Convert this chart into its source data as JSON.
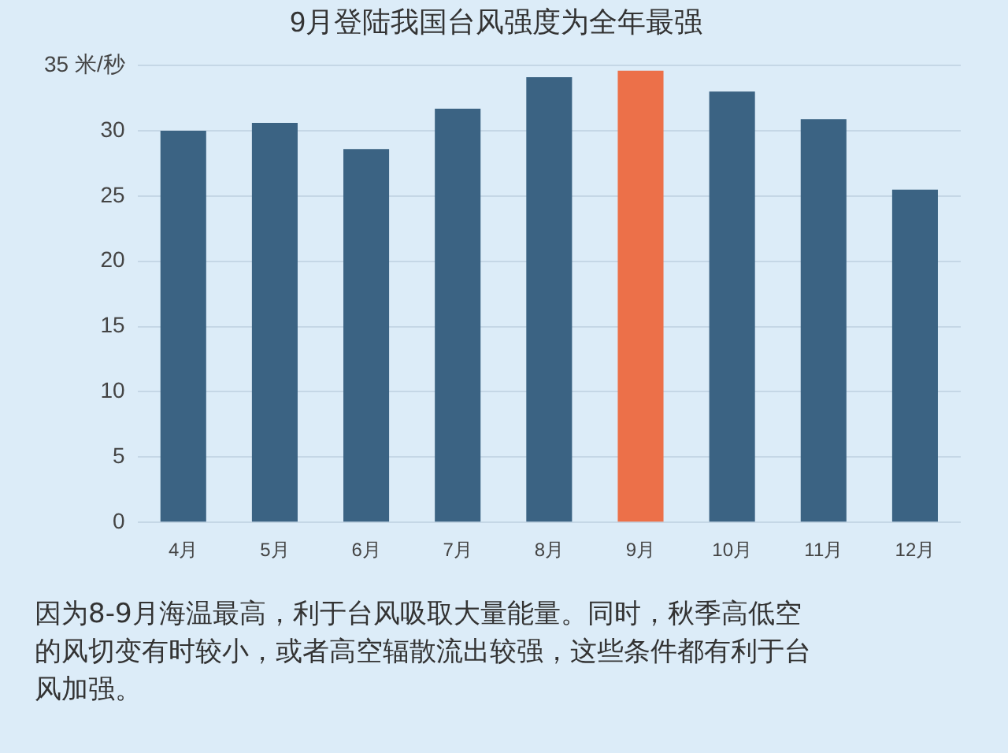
{
  "chart_data": {
    "type": "bar",
    "title": "9月登陆我国台风强度为全年最强",
    "categories": [
      "4月",
      "5月",
      "6月",
      "7月",
      "8月",
      "9月",
      "10月",
      "11月",
      "12月"
    ],
    "values": [
      30,
      30.6,
      28.6,
      31.7,
      34.1,
      34.6,
      33,
      30.9,
      25.5
    ],
    "colors": [
      "#3b6383",
      "#3b6383",
      "#3b6383",
      "#3b6383",
      "#3b6383",
      "#ec7049",
      "#3b6383",
      "#3b6383",
      "#3b6383"
    ],
    "ylim": [
      0,
      35
    ],
    "yticks": [
      0,
      5,
      10,
      15,
      20,
      25,
      30,
      {
        "value": 35,
        "label": "35 米/秒"
      }
    ],
    "grid": "y",
    "legend": false,
    "annotations": [
      "因为8-9月海温最高，利于台风吸取大量能量。同时，秋季高低空的风切变有时较小，或者高空辐散流出较强，这些条件都有利于台风加强。"
    ]
  }
}
